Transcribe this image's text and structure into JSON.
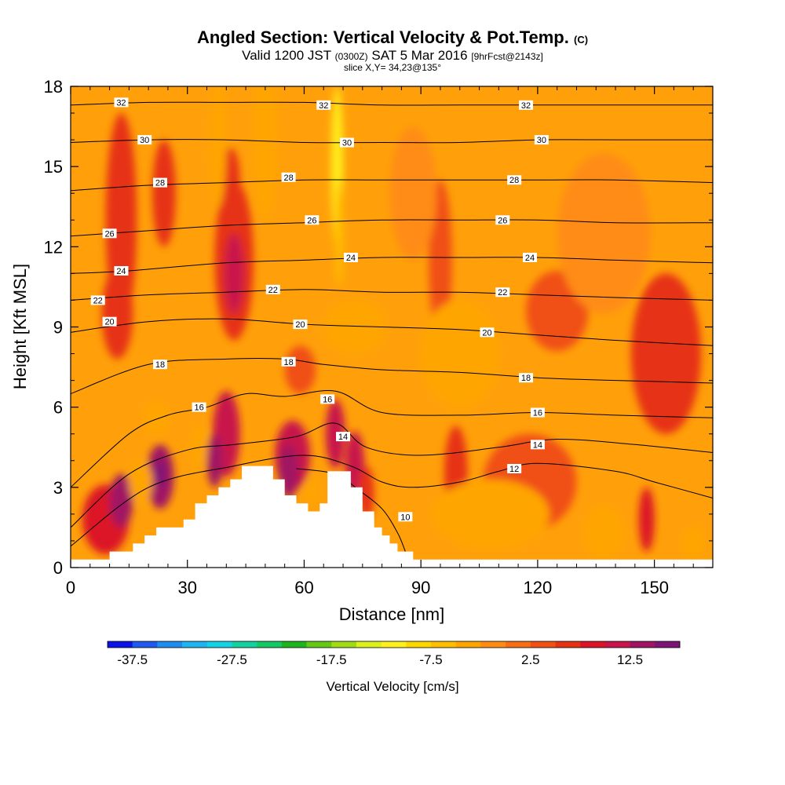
{
  "header": {
    "title": "Angled Section: Vertical Velocity & Pot.Temp.",
    "title_suffix": "(C)",
    "valid_a": "Valid 1200 JST",
    "valid_b": "(0300Z)",
    "valid_c": "SAT 5 Mar 2016",
    "valid_d": "[9hrFcst@2143z]",
    "slice": "slice X,Y= 34,23@135°"
  },
  "chart_data": {
    "type": "heatmap",
    "xlabel": "Distance [nm]",
    "ylabel": "Height [Kft MSL]",
    "xlim": [
      0,
      165
    ],
    "ylim": [
      0,
      18
    ],
    "x_ticks": [
      0,
      30,
      60,
      90,
      120,
      150
    ],
    "y_ticks": [
      0,
      3,
      6,
      9,
      12,
      15,
      18
    ],
    "colorbar": {
      "label": "Vertical Velocity [cm/s]",
      "tick_labels": [
        "-37.5",
        "-27.5",
        "-17.5",
        "-7.5",
        "2.5",
        "12.5"
      ],
      "tick_values": [
        -37.5,
        -27.5,
        -17.5,
        -7.5,
        2.5,
        12.5
      ],
      "range": [
        -40,
        17.5
      ],
      "colors": [
        "#0a14e6",
        "#1e5af0",
        "#1e8cf0",
        "#1eb4f0",
        "#14d2e6",
        "#14d2a0",
        "#14c864",
        "#1eb41e",
        "#64c814",
        "#a0dc14",
        "#dcf01e",
        "#fff01e",
        "#ffd700",
        "#ffbe00",
        "#ffa500",
        "#ff8c14",
        "#f56e14",
        "#f05014",
        "#e63214",
        "#dc1428",
        "#c8144b",
        "#a01464",
        "#7d1478"
      ]
    },
    "theta_contours": [
      {
        "value": 10,
        "label": "10",
        "points": [
          [
            58,
            3.7
          ],
          [
            68,
            3.5
          ],
          [
            74,
            2.9
          ],
          [
            80,
            2.2
          ],
          [
            84,
            1.3
          ],
          [
            86,
            0.6
          ]
        ]
      },
      {
        "value": 12,
        "label": "12",
        "points": [
          [
            0,
            0.8
          ],
          [
            20,
            3.0
          ],
          [
            42,
            3.8
          ],
          [
            60,
            4.2
          ],
          [
            72,
            3.8
          ],
          [
            80,
            3.2
          ],
          [
            88,
            3.0
          ],
          [
            100,
            3.2
          ],
          [
            110,
            3.6
          ],
          [
            120,
            3.9
          ],
          [
            140,
            3.6
          ],
          [
            150,
            3.2
          ],
          [
            165,
            2.6
          ]
        ]
      },
      {
        "value": 14,
        "label": "14",
        "points": [
          [
            0,
            1.5
          ],
          [
            15,
            3.5
          ],
          [
            30,
            4.4
          ],
          [
            42,
            4.6
          ],
          [
            58,
            4.9
          ],
          [
            68,
            5.4
          ],
          [
            76,
            4.5
          ],
          [
            90,
            4.2
          ],
          [
            110,
            4.5
          ],
          [
            125,
            4.8
          ],
          [
            145,
            4.6
          ],
          [
            165,
            4.3
          ]
        ]
      },
      {
        "value": 16,
        "label": "16",
        "points": [
          [
            0,
            3.0
          ],
          [
            15,
            5.0
          ],
          [
            25,
            5.7
          ],
          [
            35,
            6.0
          ],
          [
            45,
            6.5
          ],
          [
            55,
            6.4
          ],
          [
            68,
            6.6
          ],
          [
            80,
            5.8
          ],
          [
            100,
            5.7
          ],
          [
            120,
            5.8
          ],
          [
            140,
            5.7
          ],
          [
            165,
            5.6
          ]
        ]
      },
      {
        "value": 18,
        "label": "18",
        "points": [
          [
            0,
            6.5
          ],
          [
            20,
            7.6
          ],
          [
            40,
            7.8
          ],
          [
            55,
            7.8
          ],
          [
            65,
            7.6
          ],
          [
            80,
            7.4
          ],
          [
            100,
            7.3
          ],
          [
            120,
            7.1
          ],
          [
            140,
            7.0
          ],
          [
            165,
            6.9
          ]
        ]
      },
      {
        "value": 20,
        "label": "20",
        "points": [
          [
            0,
            8.8
          ],
          [
            20,
            9.2
          ],
          [
            40,
            9.3
          ],
          [
            60,
            9.1
          ],
          [
            80,
            9.0
          ],
          [
            100,
            8.9
          ],
          [
            120,
            8.7
          ],
          [
            140,
            8.5
          ],
          [
            165,
            8.3
          ]
        ]
      },
      {
        "value": 22,
        "label": "22",
        "points": [
          [
            0,
            10.0
          ],
          [
            20,
            10.2
          ],
          [
            40,
            10.3
          ],
          [
            60,
            10.4
          ],
          [
            80,
            10.3
          ],
          [
            100,
            10.3
          ],
          [
            120,
            10.2
          ],
          [
            140,
            10.1
          ],
          [
            165,
            10.0
          ]
        ]
      },
      {
        "value": 24,
        "label": "24",
        "points": [
          [
            0,
            11.0
          ],
          [
            15,
            11.1
          ],
          [
            40,
            11.4
          ],
          [
            60,
            11.5
          ],
          [
            80,
            11.6
          ],
          [
            100,
            11.6
          ],
          [
            120,
            11.6
          ],
          [
            140,
            11.5
          ],
          [
            165,
            11.4
          ]
        ]
      },
      {
        "value": 26,
        "label": "26",
        "points": [
          [
            0,
            12.4
          ],
          [
            20,
            12.6
          ],
          [
            40,
            12.8
          ],
          [
            60,
            12.9
          ],
          [
            80,
            13.0
          ],
          [
            100,
            13.0
          ],
          [
            120,
            13.0
          ],
          [
            140,
            12.9
          ],
          [
            165,
            12.9
          ]
        ]
      },
      {
        "value": 28,
        "label": "28",
        "points": [
          [
            0,
            14.1
          ],
          [
            20,
            14.3
          ],
          [
            40,
            14.4
          ],
          [
            60,
            14.5
          ],
          [
            80,
            14.5
          ],
          [
            100,
            14.5
          ],
          [
            120,
            14.5
          ],
          [
            140,
            14.5
          ],
          [
            165,
            14.4
          ]
        ]
      },
      {
        "value": 30,
        "label": "30",
        "points": [
          [
            0,
            15.9
          ],
          [
            20,
            16.0
          ],
          [
            40,
            16.0
          ],
          [
            60,
            15.9
          ],
          [
            80,
            15.9
          ],
          [
            100,
            15.9
          ],
          [
            120,
            16.0
          ],
          [
            140,
            16.0
          ],
          [
            165,
            16.0
          ]
        ]
      },
      {
        "value": 32,
        "label": "32",
        "points": [
          [
            0,
            17.3
          ],
          [
            20,
            17.4
          ],
          [
            40,
            17.4
          ],
          [
            60,
            17.4
          ],
          [
            80,
            17.3
          ],
          [
            100,
            17.3
          ],
          [
            120,
            17.3
          ],
          [
            140,
            17.3
          ],
          [
            165,
            17.3
          ]
        ]
      }
    ],
    "contour_labels": [
      {
        "text": "32",
        "x": 13,
        "y": 17.4
      },
      {
        "text": "32",
        "x": 65,
        "y": 17.3
      },
      {
        "text": "32",
        "x": 117,
        "y": 17.3
      },
      {
        "text": "30",
        "x": 19,
        "y": 16.0
      },
      {
        "text": "30",
        "x": 71,
        "y": 15.9
      },
      {
        "text": "30",
        "x": 121,
        "y": 16.0
      },
      {
        "text": "28",
        "x": 23,
        "y": 14.4
      },
      {
        "text": "28",
        "x": 56,
        "y": 14.6
      },
      {
        "text": "28",
        "x": 114,
        "y": 14.5
      },
      {
        "text": "26",
        "x": 10,
        "y": 12.5
      },
      {
        "text": "26",
        "x": 62,
        "y": 13.0
      },
      {
        "text": "26",
        "x": 111,
        "y": 13.0
      },
      {
        "text": "24",
        "x": 13,
        "y": 11.1
      },
      {
        "text": "24",
        "x": 72,
        "y": 11.6
      },
      {
        "text": "24",
        "x": 118,
        "y": 11.6
      },
      {
        "text": "22",
        "x": 7,
        "y": 10.0
      },
      {
        "text": "22",
        "x": 52,
        "y": 10.4
      },
      {
        "text": "22",
        "x": 111,
        "y": 10.3
      },
      {
        "text": "20",
        "x": 10,
        "y": 9.2
      },
      {
        "text": "20",
        "x": 59,
        "y": 9.1
      },
      {
        "text": "20",
        "x": 107,
        "y": 8.8
      },
      {
        "text": "18",
        "x": 23,
        "y": 7.6
      },
      {
        "text": "18",
        "x": 56,
        "y": 7.7
      },
      {
        "text": "18",
        "x": 117,
        "y": 7.1
      },
      {
        "text": "16",
        "x": 33,
        "y": 6.0
      },
      {
        "text": "16",
        "x": 66,
        "y": 6.3
      },
      {
        "text": "16",
        "x": 120,
        "y": 5.8
      },
      {
        "text": "14",
        "x": 70,
        "y": 4.9
      },
      {
        "text": "14",
        "x": 120,
        "y": 4.6
      },
      {
        "text": "12",
        "x": 114,
        "y": 3.7
      },
      {
        "text": "10",
        "x": 86,
        "y": 1.9
      }
    ],
    "terrain": [
      [
        0,
        0.3
      ],
      [
        10,
        0.3
      ],
      [
        10,
        0.6
      ],
      [
        16,
        0.6
      ],
      [
        16,
        0.9
      ],
      [
        19,
        0.9
      ],
      [
        19,
        1.2
      ],
      [
        22,
        1.2
      ],
      [
        22,
        1.5
      ],
      [
        29,
        1.5
      ],
      [
        29,
        1.8
      ],
      [
        32,
        1.8
      ],
      [
        32,
        2.4
      ],
      [
        35,
        2.4
      ],
      [
        35,
        2.7
      ],
      [
        38,
        2.7
      ],
      [
        38,
        3.0
      ],
      [
        41,
        3.0
      ],
      [
        41,
        3.3
      ],
      [
        44,
        3.3
      ],
      [
        44,
        3.8
      ],
      [
        52,
        3.8
      ],
      [
        52,
        3.3
      ],
      [
        55,
        3.3
      ],
      [
        55,
        2.7
      ],
      [
        58,
        2.7
      ],
      [
        58,
        2.4
      ],
      [
        61,
        2.4
      ],
      [
        61,
        2.1
      ],
      [
        64,
        2.1
      ],
      [
        64,
        2.4
      ],
      [
        66,
        2.4
      ],
      [
        66,
        3.6
      ],
      [
        72,
        3.6
      ],
      [
        72,
        3.0
      ],
      [
        75,
        3.0
      ],
      [
        75,
        2.1
      ],
      [
        78,
        2.1
      ],
      [
        78,
        1.5
      ],
      [
        80,
        1.5
      ],
      [
        80,
        1.2
      ],
      [
        82,
        1.2
      ],
      [
        82,
        0.9
      ],
      [
        84,
        0.9
      ],
      [
        84,
        0.6
      ],
      [
        88,
        0.6
      ],
      [
        88,
        0.3
      ],
      [
        165,
        0.3
      ],
      [
        165,
        0
      ],
      [
        0,
        0
      ]
    ],
    "wind_fields": [
      {
        "cx": 9,
        "cy": 1.8,
        "rx": 6,
        "ry": 1.3,
        "w": 8
      },
      {
        "cx": 13,
        "cy": 2.5,
        "rx": 3,
        "ry": 1.0,
        "w": 13
      },
      {
        "cx": 23,
        "cy": 3.4,
        "rx": 3.5,
        "ry": 1.2,
        "w": 13
      },
      {
        "cx": 23,
        "cy": 3.5,
        "rx": 1.3,
        "ry": 0.5,
        "w": 17
      },
      {
        "cx": 13,
        "cy": 13.0,
        "rx": 4,
        "ry": 4,
        "w": 5
      },
      {
        "cx": 12,
        "cy": 9.5,
        "rx": 4,
        "ry": 1.7,
        "w": 6
      },
      {
        "cx": 24,
        "cy": 14.0,
        "rx": 3,
        "ry": 2.0,
        "w": 5
      },
      {
        "cx": 42,
        "cy": 11.5,
        "rx": 5,
        "ry": 3.0,
        "w": 7
      },
      {
        "cx": 42,
        "cy": 11.0,
        "rx": 2.5,
        "ry": 1.5,
        "w": 11
      },
      {
        "cx": 41,
        "cy": 14.5,
        "rx": 2.5,
        "ry": 1.2,
        "w": 5
      },
      {
        "cx": 40,
        "cy": 5.0,
        "rx": 3.5,
        "ry": 1.6,
        "w": 10
      },
      {
        "cx": 37,
        "cy": 4.0,
        "rx": 2.0,
        "ry": 1.0,
        "w": 13
      },
      {
        "cx": 57,
        "cy": 4.2,
        "rx": 4.5,
        "ry": 1.3,
        "w": 10
      },
      {
        "cx": 56,
        "cy": 3.6,
        "rx": 2.5,
        "ry": 1.0,
        "w": 13
      },
      {
        "cx": 68,
        "cy": 5.0,
        "rx": 2.5,
        "ry": 1.3,
        "w": 12
      },
      {
        "cx": 73,
        "cy": 3.8,
        "rx": 2.5,
        "ry": 1.3,
        "w": 10
      },
      {
        "cx": 76,
        "cy": 2.8,
        "rx": 2.0,
        "ry": 1.0,
        "w": 7
      },
      {
        "cx": 59,
        "cy": 7.4,
        "rx": 4,
        "ry": 0.9,
        "w": 4
      },
      {
        "cx": 95,
        "cy": 11.5,
        "rx": 3,
        "ry": 3.0,
        "w": 4
      },
      {
        "cx": 99,
        "cy": 3.5,
        "rx": 3,
        "ry": 1.8,
        "w": 5
      },
      {
        "cx": 118,
        "cy": 3.2,
        "rx": 12,
        "ry": 1.8,
        "w": 4
      },
      {
        "cx": 148,
        "cy": 1.8,
        "rx": 2,
        "ry": 1.2,
        "w": 8
      },
      {
        "cx": 153,
        "cy": 8.0,
        "rx": 9,
        "ry": 3.0,
        "w": 5
      },
      {
        "cx": 125,
        "cy": 9.6,
        "rx": 8,
        "ry": 1.5,
        "w": 4
      },
      {
        "cx": 22,
        "cy": 5.6,
        "rx": 3,
        "ry": 0.6,
        "w": -4
      },
      {
        "cx": 18,
        "cy": 3.2,
        "rx": 3,
        "ry": 0.8,
        "w": -3
      },
      {
        "cx": 50,
        "cy": 16.0,
        "rx": 3,
        "ry": 3.0,
        "w": -4
      },
      {
        "cx": 38,
        "cy": 16.0,
        "rx": 2,
        "ry": 2.5,
        "w": -3
      },
      {
        "cx": 33,
        "cy": 4.5,
        "rx": 2,
        "ry": 0.8,
        "w": -3
      },
      {
        "cx": 73,
        "cy": 9.0,
        "rx": 8,
        "ry": 1.0,
        "w": -3
      },
      {
        "cx": 62,
        "cy": 2.9,
        "rx": 1.5,
        "ry": 0.5,
        "w": -5
      },
      {
        "cx": 108,
        "cy": 2.0,
        "rx": 15,
        "ry": 1.3,
        "w": -3
      },
      {
        "cx": 137,
        "cy": 1.3,
        "rx": 5,
        "ry": 1.0,
        "w": -4
      },
      {
        "cx": 100,
        "cy": 8.0,
        "rx": 10,
        "ry": 2.0,
        "w": -3
      },
      {
        "cx": 160,
        "cy": 0.9,
        "rx": 3,
        "ry": 0.6,
        "w": -4
      },
      {
        "cx": 88,
        "cy": 14.0,
        "rx": 6,
        "ry": 2.5,
        "w": -2
      },
      {
        "cx": 137,
        "cy": 12.5,
        "rx": 12,
        "ry": 3.0,
        "w": -2
      },
      {
        "cx": 68.5,
        "cy": 15.0,
        "rx": 1.5,
        "ry": 3.0,
        "w": -12
      },
      {
        "cx": 69,
        "cy": 12.5,
        "rx": 1.0,
        "ry": 2.0,
        "w": -7
      }
    ]
  }
}
